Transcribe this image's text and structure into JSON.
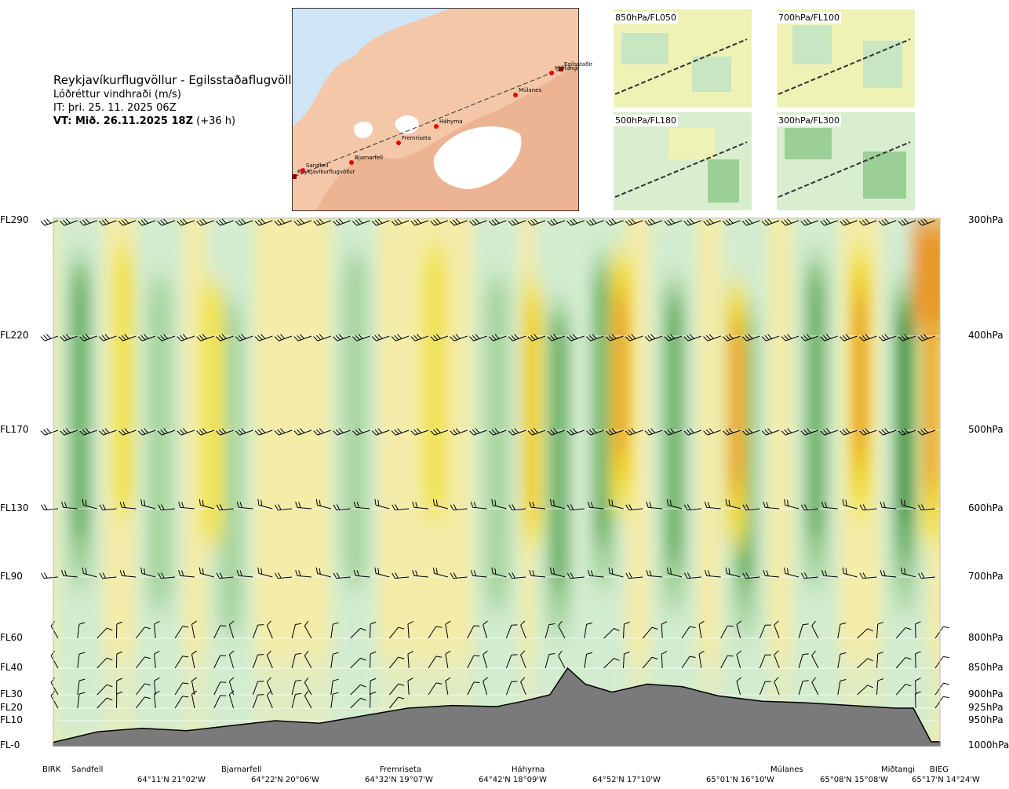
{
  "header": {
    "route": "Reykjavíkurflugvöllur - Egilsstaðaflugvöllur",
    "quantity": "Lóðréttur vindhraði (m/s)",
    "issue_time": "IT: þri. 25. 11. 2025 06Z",
    "valid_bold": "VT: Mið. 26.11.2025 18Z",
    "valid_rest": "(+36 h)"
  },
  "map": {
    "waypoints": [
      "Reykjavíkurflugvöllur",
      "Sandfell",
      "Bjarnarfell",
      "Fremriseta",
      "Háhyrna",
      "Múlanes",
      "Miðtangi",
      "Egilsstaðir"
    ]
  },
  "mini_maps": [
    {
      "label": "850hPa/FL050"
    },
    {
      "label": "700hPa/FL100"
    },
    {
      "label": "500hPa/FL180"
    },
    {
      "label": "300hPa/FL300"
    }
  ],
  "colors": {
    "strong_down": "#238b2d",
    "mod_down": "#6fb36c",
    "weak_down": "#a9d5a0",
    "faint_down": "#d3ecd0",
    "neutral": "#fafcf0",
    "faint_up": "#f6efaa",
    "weak_up": "#f0e254",
    "mod_up": "#eecf1a",
    "strong_up": "#e8992a",
    "terrain": "#7a7a7a"
  },
  "chart_data": {
    "type": "heatmap",
    "title": "Reykjavíkurflugvöllur - Egilsstaðaflugvöllur",
    "variable": "Lóðréttur vindhraði (m/s)",
    "y_left_labels": [
      "FL290",
      "FL220",
      "FL170",
      "FL130",
      "FL90",
      "FL60",
      "FL40",
      "FL30",
      "FL20",
      "FL10",
      "FL-0"
    ],
    "y_right_labels": [
      "300hPa",
      "400hPa",
      "500hPa",
      "600hPa",
      "700hPa",
      "800hPa",
      "850hPa",
      "900hPa",
      "925hPa",
      "950hPa",
      "1000hPa"
    ],
    "pressure_levels": [
      300,
      400,
      500,
      600,
      700,
      800,
      850,
      900,
      925,
      950,
      1000
    ],
    "x_waypoints": [
      "BIRK",
      "Sandfell",
      "Bjarnarfell",
      "Fremriseta",
      "Háhyrna",
      "Múlanes",
      "Miðtangi",
      "BIEG"
    ],
    "x_coords": [
      "64°11'N 21°02'W",
      "64°22'N 20°06'W",
      "64°32'N 19°07'W",
      "64°42'N 18°09'W",
      "64°52'N 17°10'W",
      "65°01'N 16°10'W",
      "65°08'N 15°08'W",
      "65°17'N 14°24'W"
    ],
    "downdraft_columns": [
      {
        "x": 0.03,
        "strength": 2
      },
      {
        "x": 0.12,
        "strength": 1
      },
      {
        "x": 0.2,
        "strength": 1
      },
      {
        "x": 0.34,
        "strength": 1
      },
      {
        "x": 0.5,
        "strength": 1
      },
      {
        "x": 0.57,
        "strength": 2
      },
      {
        "x": 0.62,
        "strength": 2
      },
      {
        "x": 0.7,
        "strength": 2
      },
      {
        "x": 0.78,
        "strength": 2
      },
      {
        "x": 0.86,
        "strength": 2
      },
      {
        "x": 0.96,
        "strength": 3
      }
    ],
    "updraft_columns": [
      {
        "x": 0.08,
        "strength": 1
      },
      {
        "x": 0.18,
        "strength": 1
      },
      {
        "x": 0.43,
        "strength": 1
      },
      {
        "x": 0.54,
        "strength": 2
      },
      {
        "x": 0.64,
        "strength": 3
      },
      {
        "x": 0.77,
        "strength": 3
      },
      {
        "x": 0.91,
        "strength": 3
      },
      {
        "x": 0.99,
        "strength": 4
      }
    ],
    "terrain_profile_hpa": [
      [
        0,
        993
      ],
      [
        0.05,
        972
      ],
      [
        0.1,
        965
      ],
      [
        0.15,
        970
      ],
      [
        0.2,
        960
      ],
      [
        0.25,
        950
      ],
      [
        0.3,
        955
      ],
      [
        0.35,
        940
      ],
      [
        0.4,
        925
      ],
      [
        0.45,
        920
      ],
      [
        0.5,
        922
      ],
      [
        0.53,
        912
      ],
      [
        0.56,
        900
      ],
      [
        0.58,
        850
      ],
      [
        0.6,
        880
      ],
      [
        0.63,
        895
      ],
      [
        0.67,
        880
      ],
      [
        0.71,
        885
      ],
      [
        0.75,
        902
      ],
      [
        0.8,
        912
      ],
      [
        0.85,
        915
      ],
      [
        0.9,
        920
      ],
      [
        0.95,
        925
      ],
      [
        0.97,
        925
      ],
      [
        0.99,
        992
      ],
      [
        1.0,
        992
      ]
    ]
  }
}
